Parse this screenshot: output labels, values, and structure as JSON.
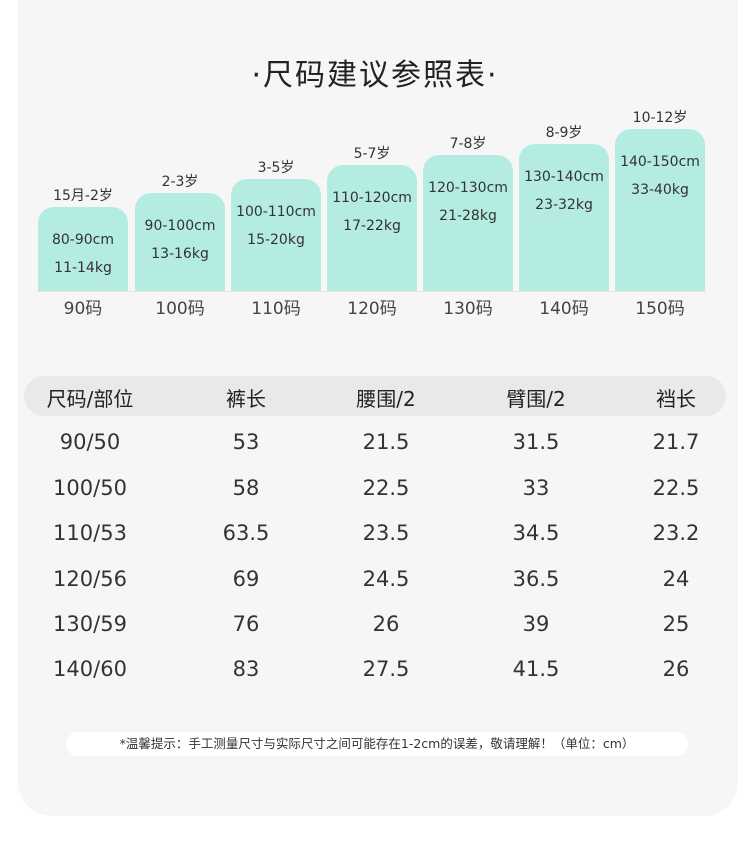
{
  "title": "·尺码建议参照表·",
  "size_bars": [
    {
      "age": "15月-2岁",
      "height": "80-90cm",
      "weight": "11-14kg",
      "size": "90码"
    },
    {
      "age": "2-3岁",
      "height": "90-100cm",
      "weight": "13-16kg",
      "size": "100码"
    },
    {
      "age": "3-5岁",
      "height": "100-110cm",
      "weight": "15-20kg",
      "size": "110码"
    },
    {
      "age": "5-7岁",
      "height": "110-120cm",
      "weight": "17-22kg",
      "size": "120码"
    },
    {
      "age": "7-8岁",
      "height": "120-130cm",
      "weight": "21-28kg",
      "size": "130码"
    },
    {
      "age": "8-9岁",
      "height": "130-140cm",
      "weight": "23-32kg",
      "size": "140码"
    },
    {
      "age": "10-12岁",
      "height": "140-150cm",
      "weight": "33-40kg",
      "size": "150码"
    }
  ],
  "table": {
    "headers": [
      "尺码/部位",
      "裤长",
      "腰围/2",
      "臂围/2",
      "裆长"
    ],
    "rows": [
      [
        "90/50",
        "53",
        "21.5",
        "31.5",
        "21.7"
      ],
      [
        "100/50",
        "58",
        "22.5",
        "33",
        "22.5"
      ],
      [
        "110/53",
        "63.5",
        "23.5",
        "34.5",
        "23.2"
      ],
      [
        "120/56",
        "69",
        "24.5",
        "36.5",
        "24"
      ],
      [
        "130/59",
        "76",
        "26",
        "39",
        "25"
      ],
      [
        "140/60",
        "83",
        "27.5",
        "41.5",
        "26"
      ]
    ]
  },
  "note": "*温馨提示：手工测量尺寸与实际尺寸之间可能存在1-2cm的误差，敬请理解！（单位：cm）",
  "colors": {
    "bar_fill": "#b5ece2",
    "panel_bg": "#f6f6f6",
    "header_bg": "#e9e9e9"
  }
}
